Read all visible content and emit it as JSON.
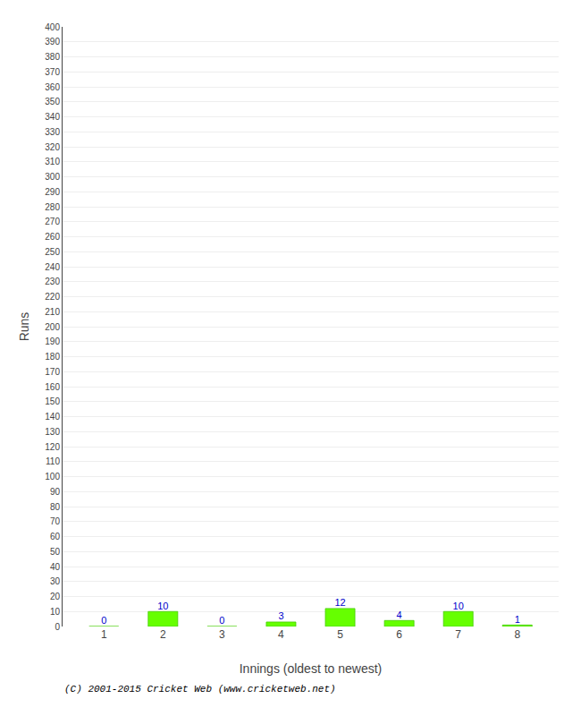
{
  "chart_data": {
    "type": "bar",
    "xlabel": "Innings (oldest to newest)",
    "ylabel": "Runs",
    "categories": [
      "1",
      "2",
      "3",
      "4",
      "5",
      "6",
      "7",
      "8"
    ],
    "values": [
      0,
      10,
      0,
      3,
      12,
      4,
      10,
      1
    ],
    "color": "#66ff00",
    "ylim": [
      0,
      400
    ],
    "yticks": [
      0,
      10,
      20,
      30,
      40,
      50,
      60,
      70,
      80,
      90,
      100,
      110,
      120,
      130,
      140,
      150,
      160,
      170,
      180,
      190,
      200,
      210,
      220,
      230,
      240,
      250,
      260,
      270,
      280,
      290,
      300,
      310,
      320,
      330,
      340,
      350,
      360,
      370,
      380,
      390,
      400
    ],
    "grid": true,
    "data_labels": true,
    "annotations": [
      "(C) 2001-2015 Cricket Web (www.cricketweb.net)"
    ]
  }
}
